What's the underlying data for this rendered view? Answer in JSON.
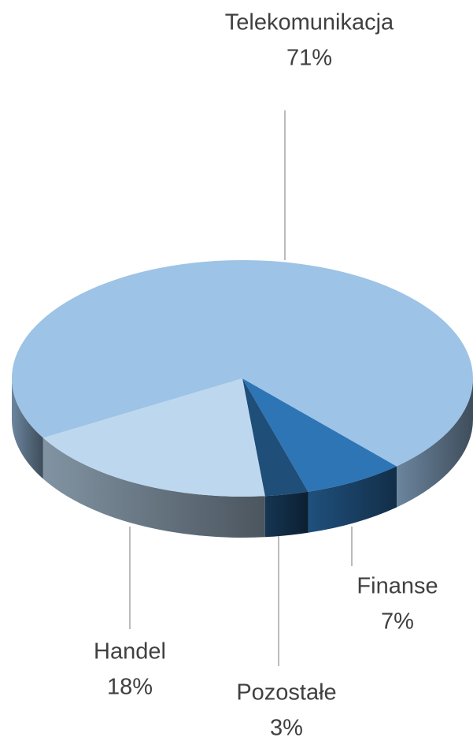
{
  "chart_data": {
    "type": "pie",
    "categories": [
      "Telekomunikacja",
      "Finanse",
      "Pozostałe",
      "Handel"
    ],
    "values": [
      71,
      7,
      3,
      18
    ],
    "value_labels": [
      "71%",
      "7%",
      "3%",
      "18%"
    ],
    "colors": [
      "#9dc3e6",
      "#2e75b6",
      "#1f4e79",
      "#bdd7ee"
    ]
  }
}
